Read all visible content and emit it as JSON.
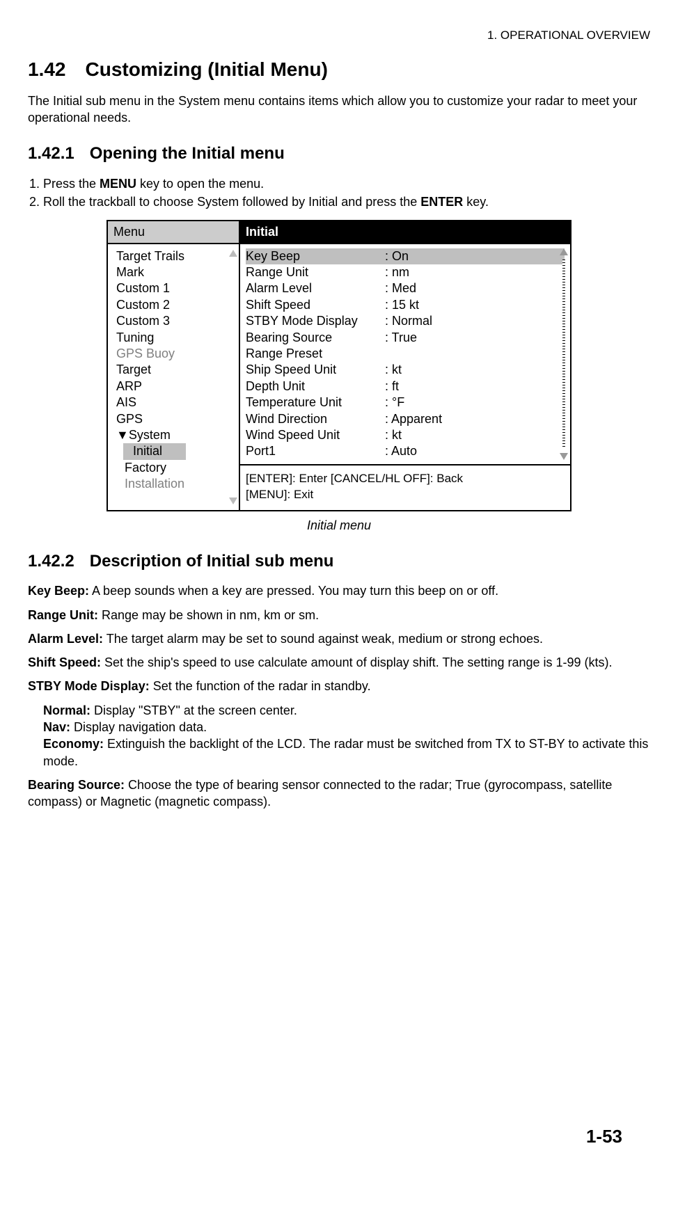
{
  "header": {
    "chapter": "1. OPERATIONAL OVERVIEW"
  },
  "section": {
    "num": "1.42",
    "title": "Customizing (Initial Menu)",
    "lead": "The Initial sub menu in the System menu contains items which allow you to customize your radar to meet your operational needs."
  },
  "sub1": {
    "num": "1.42.1",
    "title": "Opening the Initial menu",
    "step1_pre": "Press the ",
    "step1_bold": "MENU",
    "step1_post": " key to open the menu.",
    "step2_pre": "Roll the trackball to choose System followed by Initial and press the ",
    "step2_bold": "ENTER",
    "step2_post": " key."
  },
  "menu": {
    "left_title": "Menu",
    "right_title": "Initial",
    "left_items": [
      {
        "label": "Target Trails",
        "gray": false
      },
      {
        "label": "Mark",
        "gray": false
      },
      {
        "label": "Custom 1",
        "gray": false
      },
      {
        "label": "Custom 2",
        "gray": false
      },
      {
        "label": "Custom 3",
        "gray": false
      },
      {
        "label": "Tuning",
        "gray": false
      },
      {
        "label": "GPS Buoy",
        "gray": true
      },
      {
        "label": "Target",
        "gray": false
      },
      {
        "label": "ARP",
        "gray": false
      },
      {
        "label": "AIS",
        "gray": false
      },
      {
        "label": "GPS",
        "gray": false
      },
      {
        "label": "▼System",
        "gray": false
      }
    ],
    "left_sub_selected": "Initial",
    "left_sub_items": [
      {
        "label": "Factory",
        "gray": false
      },
      {
        "label": "Installation",
        "gray": true
      }
    ],
    "right_rows": [
      {
        "label": "Key Beep",
        "value": ": On",
        "selected": true
      },
      {
        "label": "Range Unit",
        "value": ": nm"
      },
      {
        "label": "Alarm Level",
        "value": ": Med"
      },
      {
        "label": "Shift Speed",
        "value": ": 15 kt"
      },
      {
        "label": "STBY Mode Display",
        "value": ": Normal"
      },
      {
        "label": "Bearing Source",
        "value": ": True"
      },
      {
        "label": "Range Preset",
        "value": ""
      },
      {
        "label": "Ship Speed Unit",
        "value": ": kt"
      },
      {
        "label": "Depth Unit",
        "value": ": ft"
      },
      {
        "label": "Temperature Unit",
        "value": ": °F"
      },
      {
        "label": "Wind Direction",
        "value": ": Apparent"
      },
      {
        "label": "Wind Speed Unit",
        "value": ": kt"
      },
      {
        "label": "Port1",
        "value": ": Auto"
      }
    ],
    "hint1": "[ENTER]: Enter  [CANCEL/HL OFF]: Back",
    "hint2": "[MENU]: Exit"
  },
  "fig_caption": "Initial menu",
  "sub2": {
    "num": "1.42.2",
    "title": "Description of Initial sub menu"
  },
  "desc": {
    "keybeep_l": "Key Beep:",
    "keybeep_t": " A beep sounds when a key are pressed. You may turn this beep on or off.",
    "range_l": "Range Unit:",
    "range_t": " Range may be shown in nm, km or sm.",
    "alarm_l": "Alarm Level:",
    "alarm_t": " The target alarm may be set to sound against weak, medium or strong echoes.",
    "shift_l": "Shift Speed:",
    "shift_t": " Set the ship's speed to use calculate amount of display shift. The setting range is 1-99 (kts).",
    "stby_l": "STBY Mode Display:",
    "stby_t": " Set the function of the radar in standby.",
    "normal_l": "Normal:",
    "normal_t": " Display \"STBY\" at the screen center.",
    "nav_l": "Nav:",
    "nav_t": " Display navigation data.",
    "econ_l": "Economy:",
    "econ_t": " Extinguish the backlight of the LCD. The radar must be switched from TX to ST-BY to activate this mode.",
    "bearing_l": "Bearing Source:",
    "bearing_t": " Choose the type of bearing sensor connected to the radar; True (gyrocompass, satellite compass) or Magnetic (magnetic compass)."
  },
  "page_num": "1-53"
}
